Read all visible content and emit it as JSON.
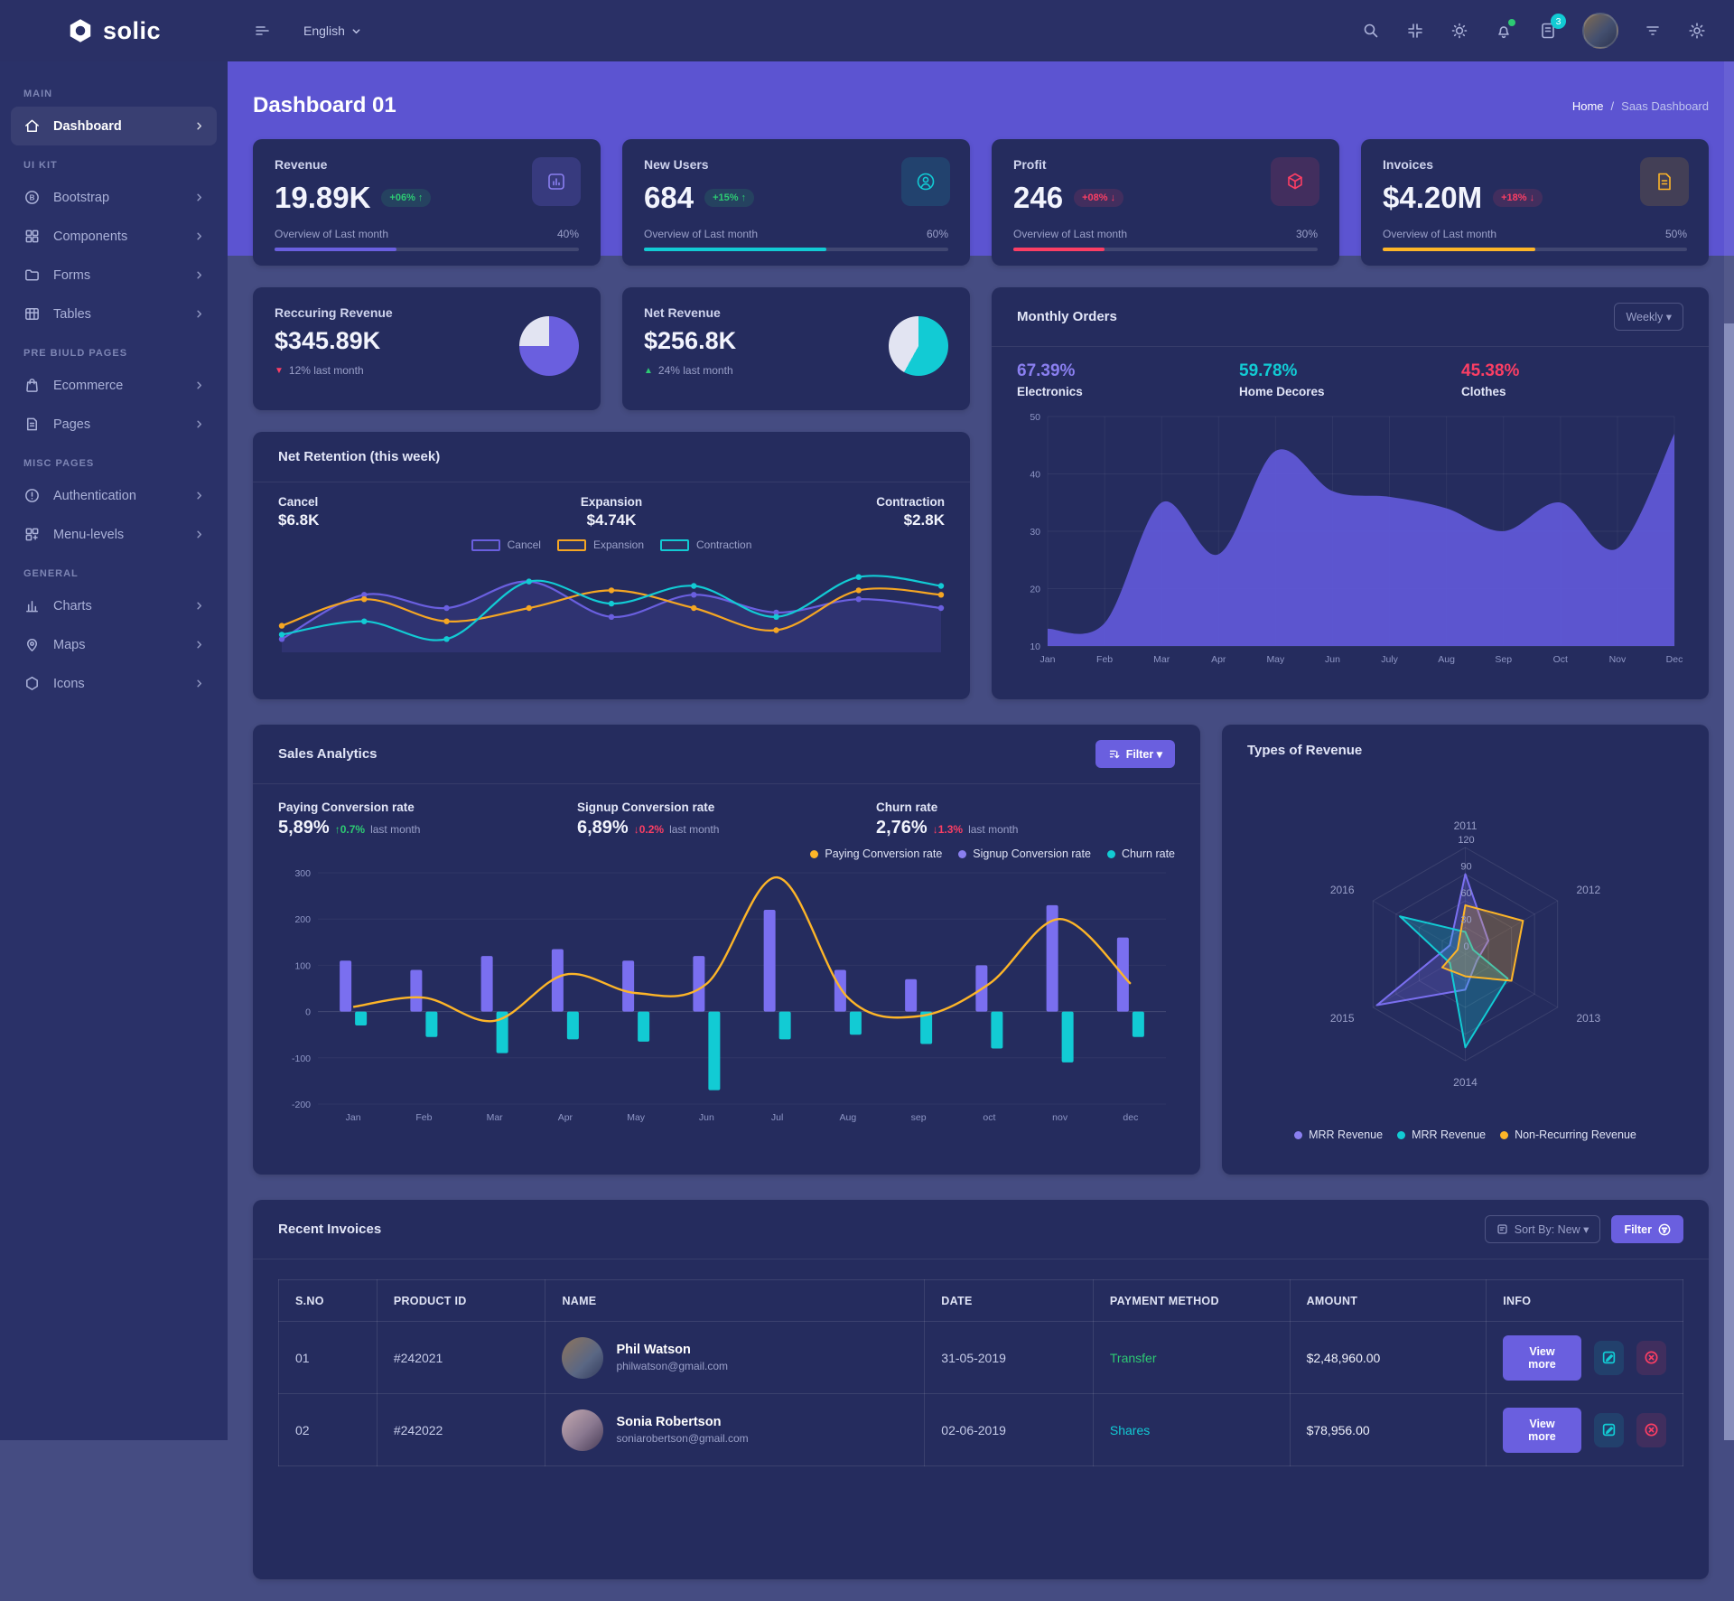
{
  "brand": {
    "name": "solic"
  },
  "navbar": {
    "language": "English",
    "message_badge": "3"
  },
  "colors": {
    "purple": "#6a5fdf",
    "purple_light": "#8a7ff0",
    "teal": "#12cbd4",
    "red": "#fb3e64",
    "yellow": "#fdb528",
    "green": "#2dca73",
    "band": "#5c54d1",
    "card": "#252c5e"
  },
  "page": {
    "title": "Dashboard 01",
    "breadcrumb_home": "Home",
    "breadcrumb_sep": "/",
    "breadcrumb_current": "Saas Dashboard"
  },
  "stat_cards": [
    {
      "label": "Revenue",
      "value": "19.89K",
      "delta": "+06% ↑",
      "direction": "up",
      "overview": "Overview of Last month",
      "percent": "40%",
      "color": "#6a5fdf",
      "icon": "bar-chart"
    },
    {
      "label": "New Users",
      "value": "684",
      "delta": "+15% ↑",
      "direction": "up",
      "overview": "Overview of Last month",
      "percent": "60%",
      "color": "#12cbd4",
      "icon": "user"
    },
    {
      "label": "Profit",
      "value": "246",
      "delta": "+08% ↓",
      "direction": "down",
      "overview": "Overview of Last month",
      "percent": "30%",
      "color": "#fb3e64",
      "icon": "package"
    },
    {
      "label": "Invoices",
      "value": "$4.20M",
      "delta": "+18% ↓",
      "direction": "down",
      "overview": "Overview of Last month",
      "percent": "50%",
      "color": "#fdb528",
      "icon": "file"
    }
  ],
  "revenue_cards": [
    {
      "label": "Reccuring Revenue",
      "value": "$345.89K",
      "arrow": "▼",
      "delta": "12% last month",
      "direction": "down",
      "pie": {
        "color": "#6a5fdf",
        "white": "#e2e4f2",
        "percent": 75,
        "white_first": true,
        "rotate": 270
      }
    },
    {
      "label": "Net Revenue",
      "value": "$256.8K",
      "arrow": "▲",
      "delta": "24% last month",
      "direction": "up",
      "pie": {
        "color": "#12cbd4",
        "white": "#e2e4f2",
        "percent": 58,
        "white_first": false,
        "rotate": 0
      }
    }
  ],
  "monthly_orders": {
    "title": "Monthly Orders",
    "range_button": "Weekly ▾",
    "stats": [
      {
        "value": "67.39%",
        "label": "Electronics",
        "color": "#8a7ff0"
      },
      {
        "value": "59.78%",
        "label": "Home Decores",
        "color": "#12cbd4"
      },
      {
        "value": "45.38%",
        "label": "Clothes",
        "color": "#fb3e64"
      }
    ],
    "chart_data": {
      "type": "area",
      "x": [
        "Jan",
        "Feb",
        "Mar",
        "Apr",
        "May",
        "Jun",
        "July",
        "Aug",
        "Sep",
        "Oct",
        "Nov",
        "Dec"
      ],
      "values": [
        13,
        14,
        35,
        26,
        44,
        37,
        36,
        34,
        30,
        35,
        27,
        47
      ],
      "ylim": [
        10,
        50
      ],
      "yticks": [
        50,
        40,
        30,
        20,
        10
      ],
      "color": "#6159d9",
      "grid": true,
      "legend_position": "none"
    }
  },
  "net_retention": {
    "title": "Net Retention (this week)",
    "stats": [
      {
        "label": "Cancel",
        "value": "$6.8K"
      },
      {
        "label": "Expansion",
        "value": "$4.74K"
      },
      {
        "label": "Contraction",
        "value": "$2.8K"
      }
    ],
    "legend": [
      {
        "label": "Cancel",
        "color": "#6a5fdf"
      },
      {
        "label": "Expansion",
        "color": "#f5a623"
      },
      {
        "label": "Contraction",
        "color": "#12cbd4"
      }
    ],
    "chart_data": {
      "type": "line",
      "x": [
        1,
        2,
        3,
        4,
        5,
        6,
        7,
        8,
        9
      ],
      "ylim": [
        0,
        10
      ],
      "grid": false,
      "series": [
        {
          "name": "Cancel",
          "color": "#6a5fdf",
          "fill": true,
          "values": [
            1.5,
            6.5,
            5,
            8,
            4,
            6.5,
            4.5,
            6,
            5
          ]
        },
        {
          "name": "Expansion",
          "color": "#f5a623",
          "fill": false,
          "values": [
            3,
            6,
            3.5,
            5,
            7,
            5,
            2.5,
            7,
            6.5
          ]
        },
        {
          "name": "Contraction",
          "color": "#12cbd4",
          "fill": false,
          "values": [
            2,
            3.5,
            1.5,
            8,
            5.5,
            7.5,
            4,
            8.5,
            7.5
          ]
        }
      ]
    }
  },
  "sales_analytics": {
    "title": "Sales Analytics",
    "filter_button": "Filter ▾",
    "stats": [
      {
        "label": "Paying Conversion rate",
        "value": "5,89%",
        "arrow": "↑",
        "delta": "0.7%",
        "direction": "up",
        "suffix": "last month"
      },
      {
        "label": "Signup Conversion rate",
        "value": "6,89%",
        "arrow": "↓",
        "delta": "0.2%",
        "direction": "down",
        "suffix": "last month"
      },
      {
        "label": "Churn rate",
        "value": "2,76%",
        "arrow": "↓",
        "delta": "1.3%",
        "direction": "down",
        "suffix": "last month"
      }
    ],
    "legend": [
      {
        "label": "Paying Conversion rate",
        "color": "#fdb528"
      },
      {
        "label": "Signup Conversion rate",
        "color": "#8a7ff0"
      },
      {
        "label": "Churn rate",
        "color": "#12cbd4"
      }
    ],
    "chart_data": {
      "type": "combo",
      "categories": [
        "Jan",
        "Feb",
        "Mar",
        "Apr",
        "May",
        "Jun",
        "Jul",
        "Aug",
        "sep",
        "oct",
        "nov",
        "dec"
      ],
      "ylim": [
        -200,
        300
      ],
      "yticks": [
        300,
        200,
        100,
        0,
        -100,
        -200
      ],
      "legend_position": "top-right",
      "series": [
        {
          "name": "Signup Conversion rate",
          "type": "bar",
          "color": "#7a6ff0",
          "values": [
            110,
            90,
            120,
            135,
            110,
            120,
            220,
            90,
            70,
            100,
            230,
            160
          ]
        },
        {
          "name": "Churn rate",
          "type": "bar",
          "color": "#12cbd4",
          "values": [
            -30,
            -55,
            -90,
            -60,
            -65,
            -170,
            -60,
            -50,
            -70,
            -80,
            -110,
            -55
          ]
        },
        {
          "name": "Paying Conversion rate",
          "type": "line",
          "color": "#fdb528",
          "values": [
            10,
            30,
            -20,
            80,
            40,
            60,
            290,
            30,
            -10,
            60,
            200,
            60
          ]
        }
      ]
    }
  },
  "types_of_revenue": {
    "title": "Types of Revenue",
    "legend": [
      {
        "label": "MRR Revenue",
        "color": "#8a7ff0"
      },
      {
        "label": "MRR Revenue",
        "color": "#12cbd4"
      },
      {
        "label": "Non-Recurring Revenue",
        "color": "#fdb528"
      }
    ],
    "chart_data": {
      "type": "radar",
      "axes": [
        "2011",
        "2012",
        "2013",
        "2014",
        "2015",
        "2016"
      ],
      "rings": [
        0,
        30,
        60,
        90,
        120
      ],
      "max": 120,
      "legend_position": "bottom",
      "series": [
        {
          "name": "MRR Revenue",
          "color": "#7a6ff0",
          "values": [
            90,
            30,
            15,
            40,
            115,
            20
          ]
        },
        {
          "name": "MRR Revenue",
          "color": "#12cbd4",
          "values": [
            25,
            10,
            55,
            105,
            20,
            85
          ]
        },
        {
          "name": "Non-Recurring Revenue",
          "color": "#fdb528",
          "values": [
            55,
            75,
            60,
            25,
            30,
            10
          ]
        }
      ]
    }
  },
  "recent_invoices": {
    "title": "Recent Invoices",
    "sort_button": "Sort By: New ▾",
    "filter_button": "Filter",
    "columns": [
      "S.NO",
      "PRODUCT ID",
      "NAME",
      "DATE",
      "PAYMENT METHOD",
      "AMOUNT",
      "INFO"
    ],
    "rows": [
      {
        "sno": "01",
        "product_id": "#242021",
        "name": "Phil Watson",
        "email": "philwatson@gmail.com",
        "date": "31-05-2019",
        "payment": "Transfer",
        "payment_color": "#2dca73",
        "amount": "$2,48,960.00",
        "action": "View more"
      },
      {
        "sno": "02",
        "product_id": "#242022",
        "name": "Sonia Robertson",
        "email": "soniarobertson@gmail.com",
        "date": "02-06-2019",
        "payment": "Shares",
        "payment_color": "#12cbd4",
        "amount": "$78,956.00",
        "action": "View more"
      }
    ]
  },
  "sidebar": {
    "sections": [
      {
        "label": "MAIN",
        "items": [
          {
            "label": "Dashboard",
            "active": true
          }
        ]
      },
      {
        "label": "UI KIT",
        "items": [
          {
            "label": "Bootstrap"
          },
          {
            "label": "Components"
          },
          {
            "label": "Forms"
          },
          {
            "label": "Tables"
          }
        ]
      },
      {
        "label": "PRE BIULD PAGES",
        "items": [
          {
            "label": "Ecommerce"
          },
          {
            "label": "Pages"
          }
        ]
      },
      {
        "label": "MISC PAGES",
        "items": [
          {
            "label": "Authentication"
          },
          {
            "label": "Menu-levels"
          }
        ]
      },
      {
        "label": "GENERAL",
        "items": [
          {
            "label": "Charts"
          },
          {
            "label": "Maps"
          },
          {
            "label": "Icons"
          }
        ]
      }
    ]
  }
}
